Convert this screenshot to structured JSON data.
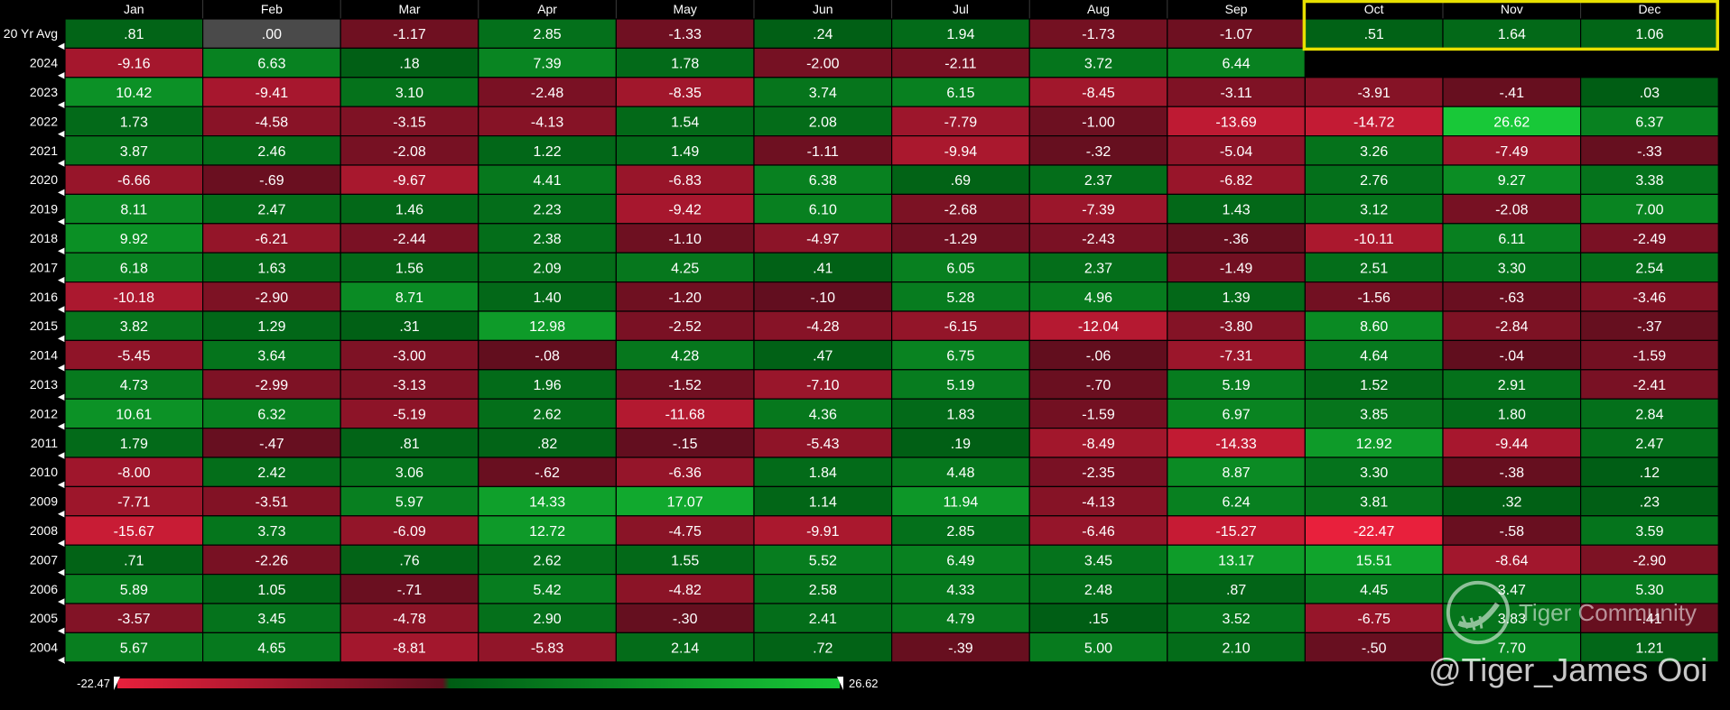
{
  "chart_data": {
    "type": "heatmap",
    "columns": [
      "Jan",
      "Feb",
      "Mar",
      "Apr",
      "May",
      "Jun",
      "Jul",
      "Aug",
      "Sep",
      "Oct",
      "Nov",
      "Dec"
    ],
    "rows": [
      {
        "label": "20 Yr Avg",
        "values": [
          ".81",
          ".00",
          "-1.17",
          "2.85",
          "-1.33",
          ".24",
          "1.94",
          "-1.73",
          "-1.07",
          ".51",
          "1.64",
          "1.06"
        ]
      },
      {
        "label": "2024",
        "values": [
          "-9.16",
          "6.63",
          ".18",
          "7.39",
          "1.78",
          "-2.00",
          "-2.11",
          "3.72",
          "6.44",
          "",
          "",
          ""
        ]
      },
      {
        "label": "2023",
        "values": [
          "10.42",
          "-9.41",
          "3.10",
          "-2.48",
          "-8.35",
          "3.74",
          "6.15",
          "-8.45",
          "-3.11",
          "-3.91",
          "-.41",
          ".03"
        ]
      },
      {
        "label": "2022",
        "values": [
          "1.73",
          "-4.58",
          "-3.15",
          "-4.13",
          "1.54",
          "2.08",
          "-7.79",
          "-1.00",
          "-13.69",
          "-14.72",
          "26.62",
          "6.37"
        ]
      },
      {
        "label": "2021",
        "values": [
          "3.87",
          "2.46",
          "-2.08",
          "1.22",
          "1.49",
          "-1.11",
          "-9.94",
          "-.32",
          "-5.04",
          "3.26",
          "-7.49",
          "-.33"
        ]
      },
      {
        "label": "2020",
        "values": [
          "-6.66",
          "-.69",
          "-9.67",
          "4.41",
          "-6.83",
          "6.38",
          ".69",
          "2.37",
          "-6.82",
          "2.76",
          "9.27",
          "3.38"
        ]
      },
      {
        "label": "2019",
        "values": [
          "8.11",
          "2.47",
          "1.46",
          "2.23",
          "-9.42",
          "6.10",
          "-2.68",
          "-7.39",
          "1.43",
          "3.12",
          "-2.08",
          "7.00"
        ]
      },
      {
        "label": "2018",
        "values": [
          "9.92",
          "-6.21",
          "-2.44",
          "2.38",
          "-1.10",
          "-4.97",
          "-1.29",
          "-2.43",
          "-.36",
          "-10.11",
          "6.11",
          "-2.49"
        ]
      },
      {
        "label": "2017",
        "values": [
          "6.18",
          "1.63",
          "1.56",
          "2.09",
          "4.25",
          ".41",
          "6.05",
          "2.37",
          "-1.49",
          "2.51",
          "3.30",
          "2.54"
        ]
      },
      {
        "label": "2016",
        "values": [
          "-10.18",
          "-2.90",
          "8.71",
          "1.40",
          "-1.20",
          "-.10",
          "5.28",
          "4.96",
          "1.39",
          "-1.56",
          "-.63",
          "-3.46"
        ]
      },
      {
        "label": "2015",
        "values": [
          "3.82",
          "1.29",
          ".31",
          "12.98",
          "-2.52",
          "-4.28",
          "-6.15",
          "-12.04",
          "-3.80",
          "8.60",
          "-2.84",
          "-.37"
        ]
      },
      {
        "label": "2014",
        "values": [
          "-5.45",
          "3.64",
          "-3.00",
          "-.08",
          "4.28",
          ".47",
          "6.75",
          "-.06",
          "-7.31",
          "4.64",
          "-.04",
          "-1.59"
        ]
      },
      {
        "label": "2013",
        "values": [
          "4.73",
          "-2.99",
          "-3.13",
          "1.96",
          "-1.52",
          "-7.10",
          "5.19",
          "-.70",
          "5.19",
          "1.52",
          "2.91",
          "-2.41"
        ]
      },
      {
        "label": "2012",
        "values": [
          "10.61",
          "6.32",
          "-5.19",
          "2.62",
          "-11.68",
          "4.36",
          "1.83",
          "-1.59",
          "6.97",
          "3.85",
          "1.80",
          "2.84"
        ]
      },
      {
        "label": "2011",
        "values": [
          "1.79",
          "-.47",
          ".81",
          ".82",
          "-.15",
          "-5.43",
          ".19",
          "-8.49",
          "-14.33",
          "12.92",
          "-9.44",
          "2.47"
        ]
      },
      {
        "label": "2010",
        "values": [
          "-8.00",
          "2.42",
          "3.06",
          "-.62",
          "-6.36",
          "1.84",
          "4.48",
          "-2.35",
          "8.87",
          "3.30",
          "-.38",
          ".12"
        ]
      },
      {
        "label": "2009",
        "values": [
          "-7.71",
          "-3.51",
          "5.97",
          "14.33",
          "17.07",
          "1.14",
          "11.94",
          "-4.13",
          "6.24",
          "3.81",
          ".32",
          ".23"
        ]
      },
      {
        "label": "2008",
        "values": [
          "-15.67",
          "3.73",
          "-6.09",
          "12.72",
          "-4.75",
          "-9.91",
          "2.85",
          "-6.46",
          "-15.27",
          "-22.47",
          "-.58",
          "3.59"
        ]
      },
      {
        "label": "2007",
        "values": [
          ".71",
          "-2.26",
          ".76",
          "2.62",
          "1.55",
          "5.52",
          "6.49",
          "3.45",
          "13.17",
          "15.51",
          "-8.64",
          "-2.90"
        ]
      },
      {
        "label": "2006",
        "values": [
          "5.89",
          "1.05",
          "-.71",
          "5.42",
          "-4.82",
          "2.58",
          "4.33",
          "2.48",
          ".87",
          "4.45",
          "3.47",
          "5.30"
        ]
      },
      {
        "label": "2005",
        "values": [
          "-3.57",
          "3.45",
          "-4.78",
          "2.90",
          "-.30",
          "2.41",
          "4.79",
          ".15",
          "3.52",
          "-6.75",
          "3.83",
          "-.41"
        ]
      },
      {
        "label": "2004",
        "values": [
          "5.67",
          "4.65",
          "-8.81",
          "-5.83",
          "2.14",
          ".72",
          "-.39",
          "5.00",
          "2.10",
          "-.50",
          "7.70",
          "1.21"
        ]
      }
    ],
    "scale_min": -22.47,
    "scale_max": 26.62,
    "scale_min_label": "-22.47",
    "scale_max_label": "26.62",
    "highlight_columns": [
      "Oct",
      "Nov",
      "Dec"
    ],
    "highlight_color": "#e8e000",
    "negative_color": "#e8203c",
    "positive_color": "#18c838",
    "grid": true
  },
  "watermark": {
    "brand_text": "Tiger Community",
    "handle_text": "@Tiger_James Ooi"
  }
}
